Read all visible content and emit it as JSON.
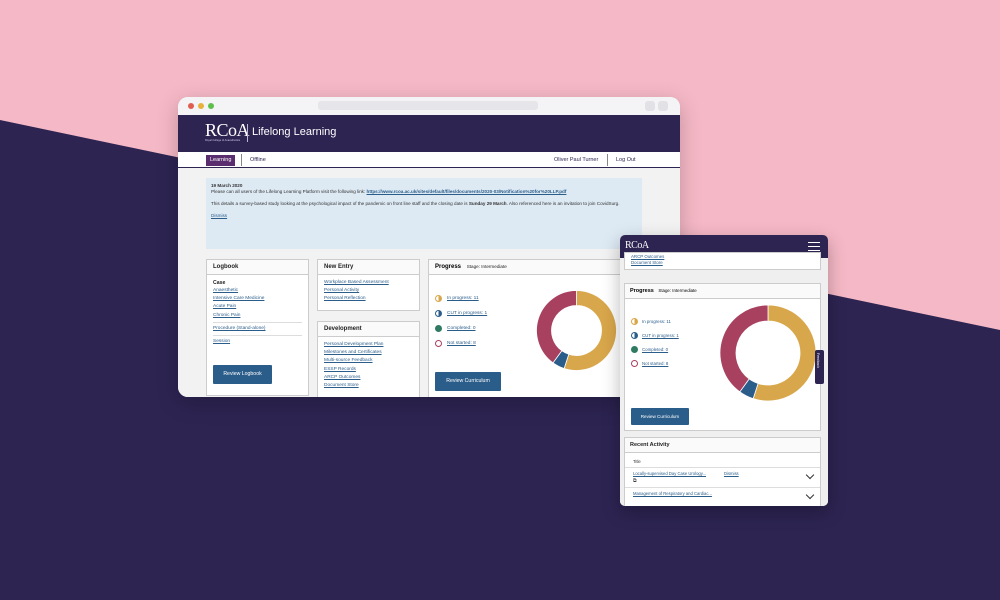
{
  "colors": {
    "brand": "#2d2452",
    "accent": "#5a2d6e",
    "button": "#2b5d8a",
    "link": "#2b5d8a",
    "in_progress": "#d9a74b",
    "cut": "#2b5d8a",
    "completed": "#2f7a63",
    "not_started": "#a84060",
    "notice_bg": "#dde9f3",
    "bg_pink": "#f5b8c6"
  },
  "header": {
    "logo": "RCoA",
    "logo_sub": "Royal College of Anaesthetists",
    "title": "Lifelong Learning"
  },
  "nav": {
    "learning": "Learning",
    "offline": "Offline",
    "user": "Oliver Paul Turner",
    "logout": "Log Out"
  },
  "notice": {
    "date": "19 March 2020",
    "line1": "Please can all users of the Lifelong Learning Platform visit the following link:",
    "link": "https://www.rcoa.ac.uk/sites/default/files/documents/2020-03/Notification%20for%20LLP.pdf",
    "line2a": "This details a survey-based study looking at the psychological impact of the pandemic on front line staff and the closing date is",
    "line2b": "Sunday 29 March",
    "line2c": ". Also referenced here is an invitation to join CovidSurg.",
    "dismiss": "Dismiss"
  },
  "logbook": {
    "title": "Logbook",
    "case_label": "Case",
    "cases": [
      "Anaesthetic",
      "Intensive Care Medicine",
      "Acute Pain",
      "Chronic Pain"
    ],
    "procedure": "Procedure (Stand-alone)",
    "session": "Session",
    "button": "Review Logbook"
  },
  "new_entry": {
    "title": "New Entry",
    "items": [
      "Workplace Based Assessment",
      "Personal Activity",
      "Personal Reflection"
    ]
  },
  "development": {
    "title": "Development",
    "items": [
      "Personal Development Plan",
      "Milestones and Certificates",
      "Multi-source Feedback",
      "ESSP Records",
      "ARCP Outcomes",
      "Document Store"
    ]
  },
  "progress": {
    "title": "Progress",
    "stage": "Stage: Intermediate",
    "button": "Review Curriculum",
    "legend": [
      {
        "label": "In progress: 11",
        "value": 11
      },
      {
        "label": "CUT in progress: 1",
        "value": 1
      },
      {
        "label": "Completed: 0",
        "value": 0
      },
      {
        "label": "Not started: 8",
        "value": 8
      }
    ]
  },
  "mobile": {
    "top_links": [
      "ARCP Outcomes",
      "Document Store"
    ],
    "feedback_tab": "Feedback",
    "recent": {
      "title": "Recent Activity",
      "col": "Title",
      "rows": [
        {
          "title": "Locally-supervised Day Case Urology...",
          "action": "Dismiss"
        },
        {
          "title": "Management of Respiratory and Cardiac..."
        }
      ]
    }
  }
}
